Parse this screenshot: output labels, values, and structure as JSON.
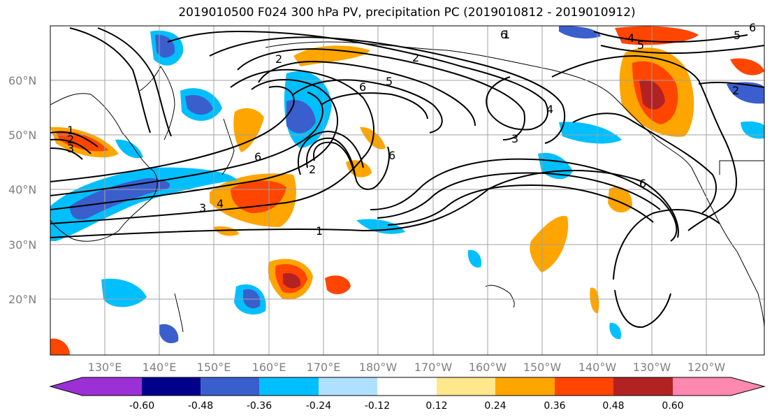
{
  "title": "2019010500 F024 300 hPa PV, precipitation PC (2019010812 - 2019010912)",
  "lat_labels": [
    "60°N",
    "50°N",
    "40°N",
    "30°N",
    "20°N"
  ],
  "lon_labels": [
    "130°E",
    "140°E",
    "150°E",
    "160°E",
    "170°E",
    "180°W",
    "170°W",
    "160°W",
    "150°W",
    "140°W",
    "130°W",
    "120°W"
  ],
  "colorbar": {
    "colors": [
      "#9b30d6",
      "#00008b",
      "#3a5fcd",
      "#00bfff",
      "#b0e0ff",
      "#ffffff",
      "#ffe78c",
      "#ffa500",
      "#ff4500",
      "#b22222",
      "#ff88b0"
    ],
    "tick_labels": [
      "-0.60",
      "-0.48",
      "-0.36",
      "-0.24",
      "-0.12",
      "0.12",
      "0.24",
      "0.36",
      "0.48",
      "0.60"
    ]
  },
  "contour_labels": [
    "1",
    "2",
    "3",
    "1",
    "2",
    "3",
    "4",
    "6",
    "2",
    "2",
    "6",
    "5",
    "6",
    "4",
    "3",
    "1",
    "6",
    "6",
    "4",
    "5",
    "2",
    "5",
    "6"
  ]
}
